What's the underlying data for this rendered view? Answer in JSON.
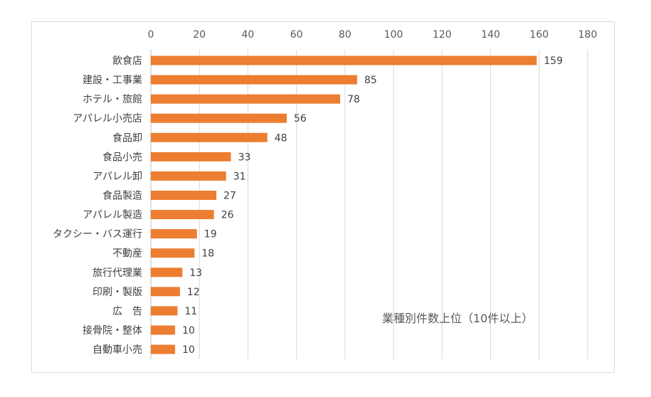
{
  "chart_data": {
    "type": "bar",
    "orientation": "horizontal",
    "title": "業種別件数上位（10件以上）",
    "categories": [
      "飲食店",
      "建設・工事業",
      "ホテル・旅館",
      "アパレル小売店",
      "食品卸",
      "食品小売",
      "アパレル卸",
      "食品製造",
      "アパレル製造",
      "タクシー・バス運行",
      "不動産",
      "旅行代理業",
      "印刷・製版",
      "広　告",
      "接骨院・整体",
      "自動車小売"
    ],
    "values": [
      159,
      85,
      78,
      56,
      48,
      33,
      31,
      27,
      26,
      19,
      18,
      13,
      12,
      11,
      10,
      10
    ],
    "xlim": [
      0,
      180
    ],
    "xticks": [
      0,
      20,
      40,
      60,
      80,
      100,
      120,
      140,
      160,
      180
    ],
    "xlabel": "",
    "ylabel": "",
    "grid": true,
    "data_labels": true,
    "bar_color": "#ed7d31",
    "grid_color": "#d9d9d9"
  }
}
